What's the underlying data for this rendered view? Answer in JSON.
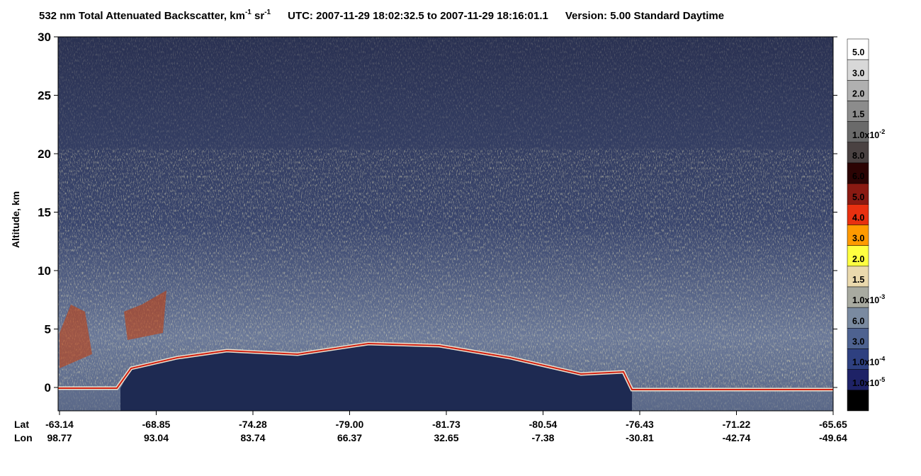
{
  "chart_data": {
    "type": "heatmap",
    "title": {
      "main": "532 nm Total Attenuated Backscatter, km",
      "sup1": "-1",
      "unit2": " sr",
      "sup2": "-1",
      "time": "UTC:  2007-11-29 18:02:32.5  to  2007-11-29 18:16:01.1",
      "version": "Version: 5.00  Standard  Daytime"
    },
    "y_label": "Altitude, km",
    "ylim": [
      -2,
      30
    ],
    "yticks": [
      0,
      5,
      10,
      15,
      20,
      25,
      30
    ],
    "x_row_labels": [
      "Lat",
      "Lon"
    ],
    "lat": [
      "-63.14",
      "-68.85",
      "-74.28",
      "-79.00",
      "-81.73",
      "-80.54",
      "-76.43",
      "-71.22",
      "-65.65"
    ],
    "lon": [
      "98.77",
      "93.04",
      "83.74",
      "66.37",
      "32.65",
      "-7.38",
      "-30.81",
      "-42.74",
      "-49.64"
    ],
    "colorbar": {
      "colors": [
        "#ffffff",
        "#d8d8d8",
        "#b0b0b0",
        "#8c8c8c",
        "#6a6a6a",
        "#4a4242",
        "#2c0404",
        "#8a1a12",
        "#e83010",
        "#ff9a00",
        "#ffff40",
        "#ead9ad",
        "#a8aaa0",
        "#7a8aa0",
        "#4e6290",
        "#2e4080",
        "#1e2266",
        "#000000"
      ],
      "labels": [
        {
          "text": "5.0"
        },
        {
          "text": "3.0"
        },
        {
          "text": "2.0"
        },
        {
          "text": "1.5"
        },
        {
          "text": "1.0x10",
          "exp": "-2"
        },
        {
          "text": "8.0"
        },
        {
          "text": "6.0"
        },
        {
          "text": "5.0"
        },
        {
          "text": "4.0"
        },
        {
          "text": "3.0"
        },
        {
          "text": "2.0"
        },
        {
          "text": "1.5"
        },
        {
          "text": "1.0x10",
          "exp": "-3"
        },
        {
          "text": "6.0"
        },
        {
          "text": "3.0"
        },
        {
          "text": "1.0x10",
          "exp": "-4"
        },
        {
          "text": "1.0x10",
          "exp": "-5"
        }
      ]
    }
  }
}
